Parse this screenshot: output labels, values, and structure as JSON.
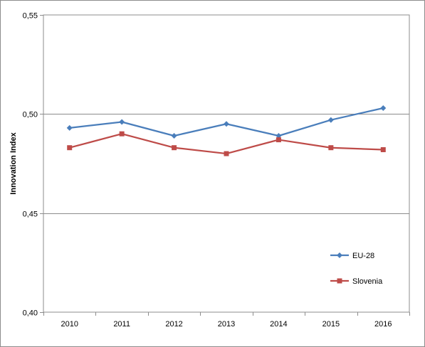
{
  "chart_data": {
    "type": "line",
    "title": "",
    "xlabel": "",
    "ylabel": "Innovation Index",
    "categories": [
      "2010",
      "2011",
      "2012",
      "2013",
      "2014",
      "2015",
      "2016"
    ],
    "ylim": [
      0.4,
      0.55
    ],
    "yticks": [
      "0,40",
      "0,45",
      "0,50",
      "0,55"
    ],
    "ytick_values": [
      0.4,
      0.45,
      0.5,
      0.55
    ],
    "grid": true,
    "legend_position": "bottom-right",
    "series": [
      {
        "name": "EU-28",
        "color": "#4a7ebb",
        "marker": "diamond",
        "values": [
          0.493,
          0.496,
          0.489,
          0.495,
          0.489,
          0.497,
          0.503
        ]
      },
      {
        "name": "Slovenia",
        "color": "#be4b48",
        "marker": "square",
        "values": [
          0.483,
          0.49,
          0.483,
          0.48,
          0.487,
          0.483,
          0.482
        ]
      }
    ]
  }
}
